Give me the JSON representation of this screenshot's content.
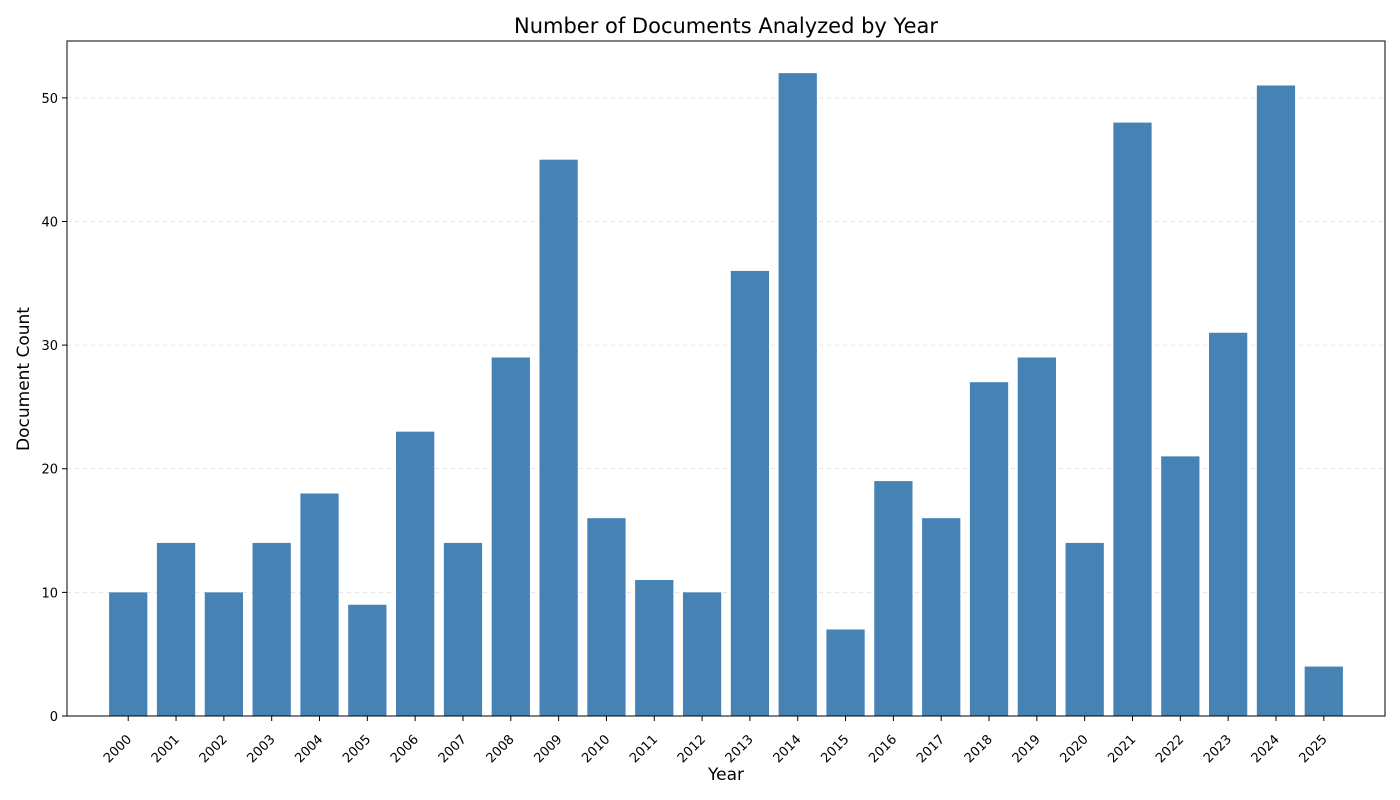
{
  "chart_data": {
    "type": "bar",
    "title": "Number of Documents Analyzed by Year",
    "xlabel": "Year",
    "ylabel": "Document Count",
    "categories": [
      "2000",
      "2001",
      "2002",
      "2003",
      "2004",
      "2005",
      "2006",
      "2007",
      "2008",
      "2009",
      "2010",
      "2011",
      "2012",
      "2013",
      "2014",
      "2015",
      "2016",
      "2017",
      "2018",
      "2019",
      "2020",
      "2021",
      "2022",
      "2023",
      "2024",
      "2025"
    ],
    "values": [
      10,
      14,
      10,
      14,
      18,
      9,
      23,
      14,
      29,
      45,
      16,
      11,
      10,
      36,
      52,
      7,
      19,
      16,
      27,
      29,
      14,
      48,
      21,
      31,
      51,
      4
    ],
    "ylim": [
      0,
      54.6
    ],
    "yticks": [
      0,
      10,
      20,
      30,
      40,
      50
    ],
    "grid": "y-dashed",
    "legend": "none",
    "bar_color": "#4682b4"
  }
}
